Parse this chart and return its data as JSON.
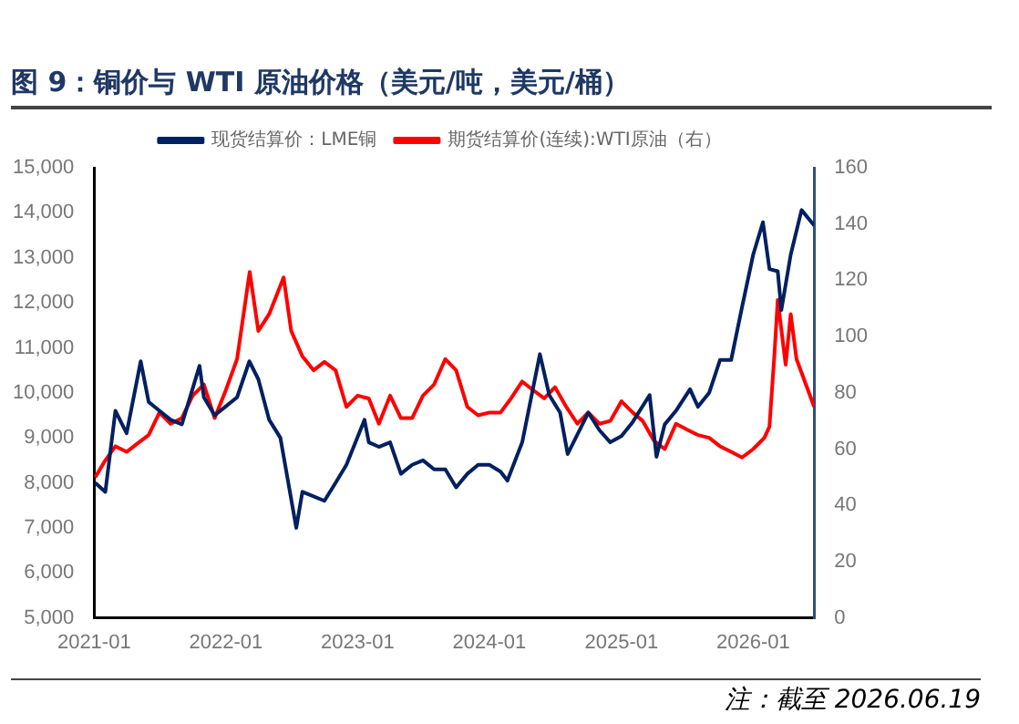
{
  "chart_data": {
    "type": "line",
    "title": "图 9：铜价与 WTI 原油价格（美元/吨，美元/桶）",
    "annotations": [
      "注：截至 2026.06.19"
    ],
    "xlim": [
      "2021-01",
      "2026-06-19"
    ],
    "xticks": [
      "2021-01",
      "2022-01",
      "2023-01",
      "2024-01",
      "2025-01",
      "2026-01"
    ],
    "ylim": [
      5000,
      15000
    ],
    "yticks": [
      {
        "value": 5000,
        "label": "5,000"
      },
      {
        "value": 6000,
        "label": "6,000"
      },
      {
        "value": 7000,
        "label": "7,000"
      },
      {
        "value": 8000,
        "label": "8,000"
      },
      {
        "value": 9000,
        "label": "9,000"
      },
      {
        "value": 10000,
        "label": "10,000"
      },
      {
        "value": 11000,
        "label": "11,000"
      },
      {
        "value": 12000,
        "label": "12,000"
      },
      {
        "value": 13000,
        "label": "13,000"
      },
      {
        "value": 14000,
        "label": "14,000"
      },
      {
        "value": 15000,
        "label": "15,000"
      }
    ],
    "y2lim": [
      0,
      160
    ],
    "y2ticks": [
      0,
      20,
      40,
      60,
      80,
      100,
      120,
      140,
      160
    ],
    "grid": false,
    "legend": "top",
    "series": [
      {
        "name": "现货结算价：LME铜",
        "color": "#002060",
        "x": [
          "2021-01-04",
          "2021-02-01",
          "2021-03-01",
          "2021-04-01",
          "2021-05-10",
          "2021-06-01",
          "2021-07-01",
          "2021-08-01",
          "2021-09-01",
          "2021-10-20",
          "2021-11-01",
          "2021-12-01",
          "2022-01-01",
          "2022-02-01",
          "2022-03-07",
          "2022-04-01",
          "2022-05-01",
          "2022-06-01",
          "2022-07-15",
          "2022-08-01",
          "2022-09-01",
          "2022-10-01",
          "2022-11-01",
          "2022-12-01",
          "2023-01-20",
          "2023-02-01",
          "2023-03-01",
          "2023-04-01",
          "2023-05-01",
          "2023-06-01",
          "2023-07-01",
          "2023-08-01",
          "2023-09-01",
          "2023-10-01",
          "2023-11-01",
          "2023-12-01",
          "2024-01-01",
          "2024-02-01",
          "2024-02-20",
          "2024-04-01",
          "2024-05-20",
          "2024-06-15",
          "2024-07-15",
          "2024-08-05",
          "2024-09-15",
          "2024-10-01",
          "2024-11-01",
          "2024-12-01",
          "2025-01-01",
          "2025-02-01",
          "2025-03-20",
          "2025-04-08",
          "2025-05-01",
          "2025-06-01",
          "2025-07-10",
          "2025-08-01",
          "2025-09-01",
          "2025-10-01",
          "2025-11-01",
          "2025-12-01",
          "2026-01-01",
          "2026-01-28",
          "2026-02-15",
          "2026-03-10",
          "2026-03-20",
          "2026-04-15",
          "2026-05-15",
          "2026-06-19"
        ],
        "values": [
          8000,
          7800,
          9600,
          9100,
          10700,
          9800,
          9600,
          9400,
          9300,
          10600,
          9900,
          9500,
          9700,
          9900,
          10700,
          10300,
          9400,
          9000,
          7000,
          7800,
          7700,
          7600,
          8000,
          8400,
          9400,
          8900,
          8800,
          8900,
          8200,
          8400,
          8500,
          8300,
          8300,
          7900,
          8200,
          8400,
          8400,
          8250,
          8050,
          8900,
          10860,
          9950,
          9560,
          8640,
          9300,
          9560,
          9170,
          8900,
          9040,
          9350,
          9950,
          8580,
          9300,
          9600,
          10080,
          9690,
          10000,
          10730,
          10730,
          11900,
          13070,
          13790,
          12750,
          12700,
          11840,
          13070,
          14060,
          13720
        ]
      },
      {
        "name": "期货结算价(连续):WTI原油（右）",
        "color": "#ff0000",
        "axis": "y2",
        "x": [
          "2021-01-04",
          "2021-02-01",
          "2021-03-01",
          "2021-04-01",
          "2021-05-01",
          "2021-06-01",
          "2021-07-01",
          "2021-08-01",
          "2021-09-01",
          "2021-10-01",
          "2021-11-01",
          "2021-12-01",
          "2022-01-01",
          "2022-02-01",
          "2022-03-08",
          "2022-04-01",
          "2022-05-01",
          "2022-06-10",
          "2022-07-01",
          "2022-08-01",
          "2022-09-01",
          "2022-10-01",
          "2022-11-01",
          "2022-12-01",
          "2023-01-01",
          "2023-02-01",
          "2023-03-01",
          "2023-04-01",
          "2023-05-01",
          "2023-06-01",
          "2023-07-01",
          "2023-08-01",
          "2023-09-01",
          "2023-10-01",
          "2023-11-01",
          "2023-12-01",
          "2024-01-01",
          "2024-02-01",
          "2024-03-01",
          "2024-04-01",
          "2024-05-01",
          "2024-06-01",
          "2024-07-01",
          "2024-08-01",
          "2024-09-01",
          "2024-10-01",
          "2024-11-01",
          "2024-12-01",
          "2025-01-01",
          "2025-02-01",
          "2025-03-01",
          "2025-04-01",
          "2025-05-01",
          "2025-06-01",
          "2025-07-01",
          "2025-08-01",
          "2025-09-01",
          "2025-10-01",
          "2025-11-01",
          "2025-12-01",
          "2026-01-01",
          "2026-02-01",
          "2026-02-15",
          "2026-03-01",
          "2026-03-10",
          "2026-04-01",
          "2026-04-15",
          "2026-05-01",
          "2026-06-19"
        ],
        "values": [
          50,
          56,
          61,
          59,
          62,
          65,
          73,
          69,
          71,
          79,
          83,
          71,
          81,
          92,
          123,
          102,
          108,
          121,
          102,
          93,
          88,
          91,
          88,
          75,
          79,
          78,
          69,
          79,
          71,
          71,
          79,
          83,
          92,
          88,
          75,
          72,
          73,
          73,
          78,
          84,
          81,
          78,
          82,
          75,
          69,
          73,
          69,
          70,
          77,
          73,
          70,
          63,
          60,
          69,
          67,
          65,
          64,
          61,
          59,
          57,
          60,
          64,
          68,
          94,
          113,
          90,
          108,
          92,
          75
        ]
      }
    ]
  }
}
